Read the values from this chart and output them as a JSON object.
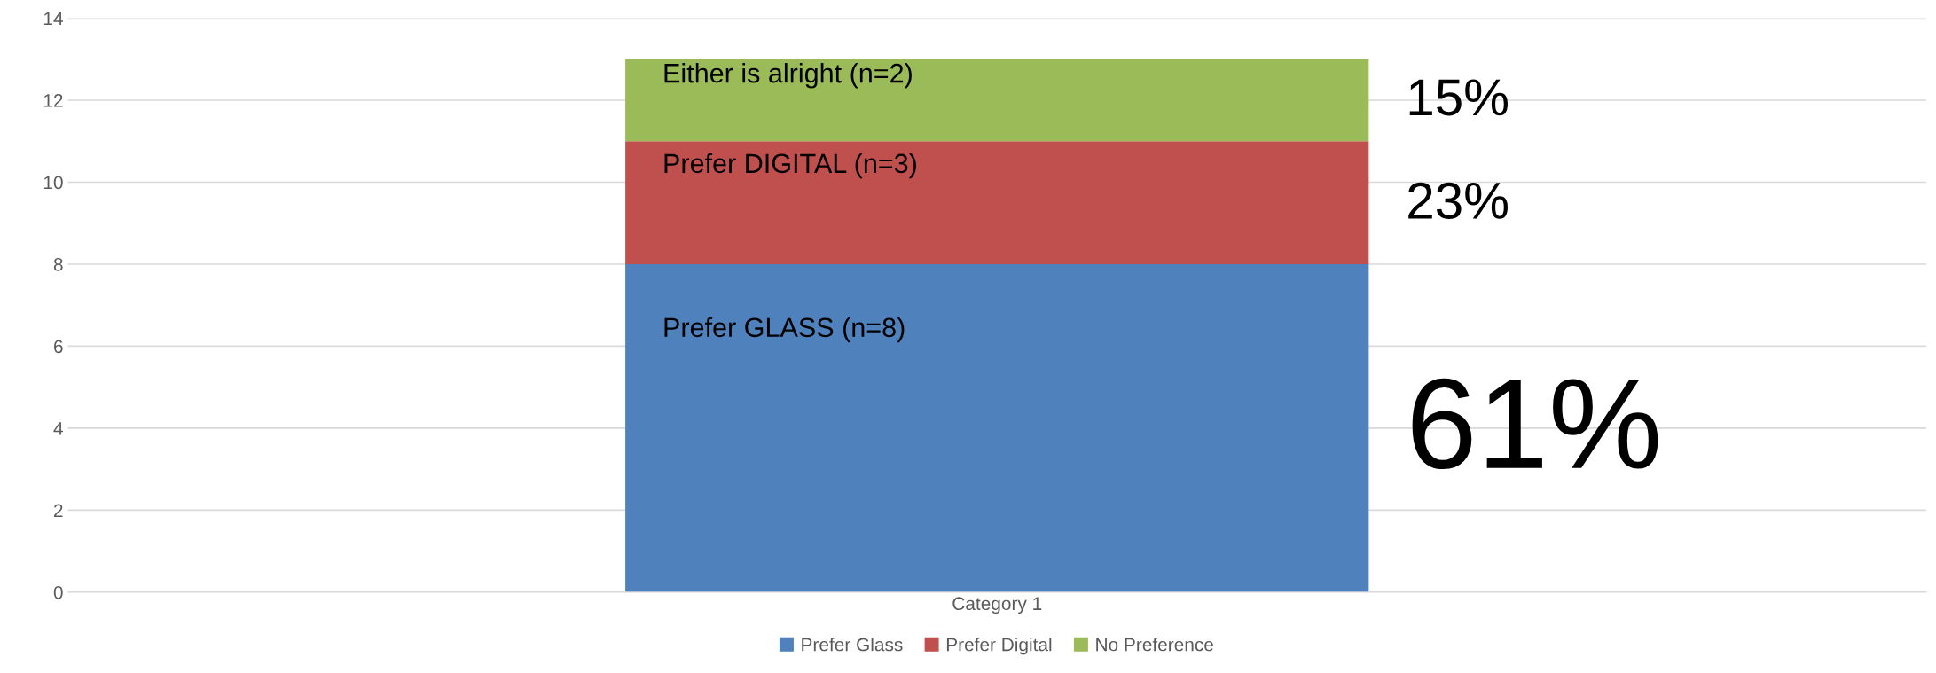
{
  "chart_data": {
    "type": "bar",
    "stacked": true,
    "categories": [
      "Category 1"
    ],
    "series": [
      {
        "name": "Prefer Glass",
        "color": "#4f81bd",
        "values": [
          8
        ]
      },
      {
        "name": "Prefer Digital",
        "color": "#c0504d",
        "values": [
          3
        ]
      },
      {
        "name": "No Preference",
        "color": "#9bbb59",
        "values": [
          2
        ]
      }
    ],
    "ylim": [
      0,
      14
    ],
    "yticks": [
      0,
      2,
      4,
      6,
      8,
      10,
      12,
      14
    ],
    "grid": "y",
    "legend": "bottom",
    "annotations": [
      "Prefer GLASS (n=8)",
      "Prefer DIGITAL (n=3)",
      "Either is alright (n=2)",
      "61%",
      "23%",
      "15%"
    ]
  }
}
